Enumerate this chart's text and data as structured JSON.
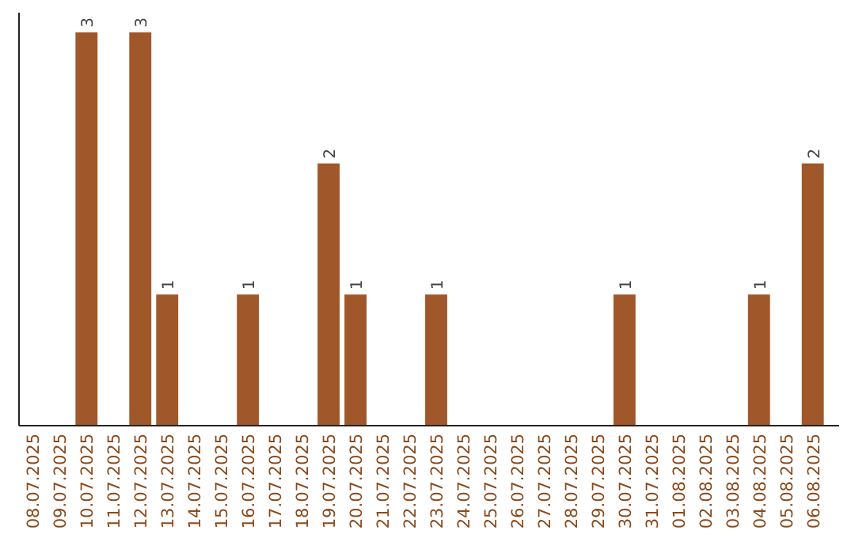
{
  "chart_data": {
    "type": "bar",
    "categories": [
      "08.07.2025",
      "09.07.2025",
      "10.07.2025",
      "11.07.2025",
      "12.07.2025",
      "13.07.2025",
      "14.07.2025",
      "15.07.2025",
      "16.07.2025",
      "17.07.2025",
      "18.07.2025",
      "19.07.2025",
      "20.07.2025",
      "21.07.2025",
      "22.07.2025",
      "23.07.2025",
      "24.07.2025",
      "25.07.2025",
      "26.07.2025",
      "27.07.2025",
      "28.07.2025",
      "29.07.2025",
      "30.07.2025",
      "31.07.2025",
      "01.08.2025",
      "02.08.2025",
      "03.08.2025",
      "04.08.2025",
      "05.08.2025",
      "06.08.2025"
    ],
    "values": [
      0,
      0,
      3,
      0,
      3,
      1,
      0,
      0,
      1,
      0,
      0,
      2,
      1,
      0,
      0,
      1,
      0,
      0,
      0,
      0,
      0,
      0,
      1,
      0,
      0,
      0,
      0,
      1,
      0,
      2
    ],
    "value_labels": [
      null,
      null,
      "3",
      null,
      "3",
      "1",
      null,
      null,
      "1",
      null,
      null,
      "2",
      "1",
      null,
      null,
      "1",
      null,
      null,
      null,
      null,
      null,
      null,
      "1",
      null,
      null,
      null,
      null,
      "1",
      null,
      "2"
    ],
    "color": "#a0572a",
    "ylim": [
      0,
      3.15
    ],
    "tick_labels": "x"
  }
}
